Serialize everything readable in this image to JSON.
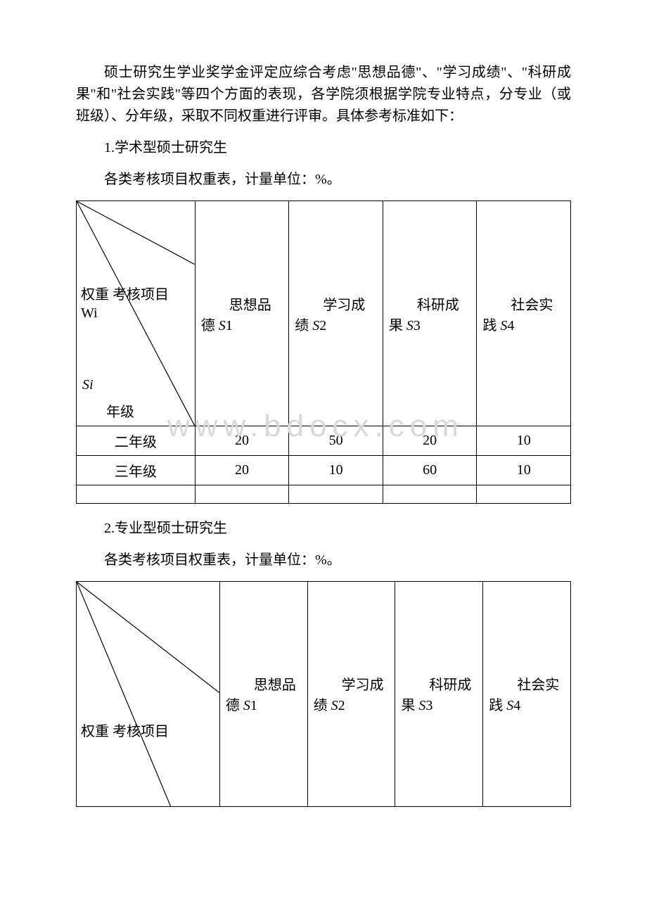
{
  "paragraphs": {
    "intro": "硕士研究生学业奖学金评定应综合考虑\"思想品德\"、\"学习成绩\"、\"科研成果\"和\"社会实践\"等四个方面的表现，各学院须根据学院专业特点，分专业（或班级）、分年级，采取不同权重进行评审。具体参考标准如下：",
    "section1_title": "1.学术型硕士研究生",
    "table_caption": "各类考核项目权重表，计量单位：%。",
    "section2_title": "2.专业型硕士研究生"
  },
  "table1": {
    "diag_labels": {
      "top": "权重  考核项目 Wi",
      "si": "Si",
      "bottom": "年级"
    },
    "columns": [
      {
        "label_top": "思想品",
        "label_bottom": "德",
        "s_label": "S",
        "s_num": "1"
      },
      {
        "label_top": "学习成",
        "label_bottom": "绩",
        "s_label": "S",
        "s_num": "2"
      },
      {
        "label_top": "科研成",
        "label_bottom": "果",
        "s_label": "S",
        "s_num": "3"
      },
      {
        "label_top": "社会实",
        "label_bottom": "践",
        "s_label": "S",
        "s_num": "4"
      }
    ],
    "rows": [
      {
        "grade": "二年级",
        "values": [
          "20",
          "50",
          "20",
          "10"
        ]
      },
      {
        "grade": "三年级",
        "values": [
          "20",
          "10",
          "60",
          "10"
        ]
      }
    ],
    "col_widths": [
      "24%",
      "19%",
      "19%",
      "19%",
      "19%"
    ],
    "watermark": "www.bdocx.com"
  },
  "table2": {
    "diag_labels": {
      "top": "权重  考核项目"
    },
    "columns": [
      {
        "label_top": "思想品",
        "label_bottom": "德",
        "s_label": "S",
        "s_num": "1"
      },
      {
        "label_top": "学习成",
        "label_bottom": "绩",
        "s_label": "S",
        "s_num": "2"
      },
      {
        "label_top": "科研成",
        "label_bottom": "果",
        "s_label": "S",
        "s_num": "3"
      },
      {
        "label_top": "社会实",
        "label_bottom": "践",
        "s_label": "S",
        "s_num": "4"
      }
    ],
    "col_widths": [
      "29%",
      "17.75%",
      "17.75%",
      "17.75%",
      "17.75%"
    ]
  },
  "colors": {
    "text": "#000000",
    "border": "#000000",
    "watermark": "#d9d9d9",
    "background": "#ffffff"
  },
  "fonts": {
    "body_size_pt": 15,
    "watermark_size_pt": 33
  }
}
